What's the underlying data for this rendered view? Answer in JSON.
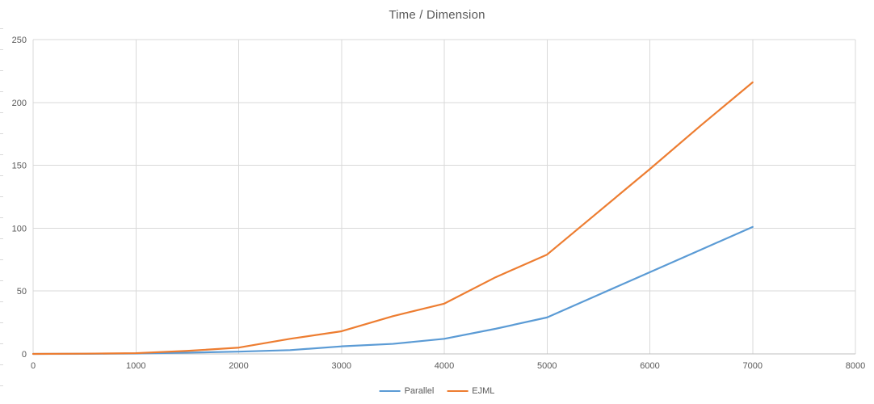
{
  "title": "Time / Dimension",
  "colors": {
    "series_parallel": "#5B9BD5",
    "series_ejml": "#ED7D31",
    "gridline": "#d9d9d9",
    "axis_line": "#bfbfbf",
    "text": "#595959",
    "background": "#ffffff"
  },
  "legend": {
    "items": [
      {
        "label": "Parallel",
        "color": "#5B9BD5"
      },
      {
        "label": "EJML",
        "color": "#ED7D31"
      }
    ]
  },
  "chart_data": {
    "type": "line",
    "title": "Time / Dimension",
    "xlabel": "",
    "ylabel": "",
    "xlim": [
      0,
      8000
    ],
    "ylim": [
      0,
      250
    ],
    "x_ticks": [
      0,
      1000,
      2000,
      3000,
      4000,
      5000,
      6000,
      7000,
      8000
    ],
    "y_ticks": [
      0,
      50,
      100,
      150,
      200,
      250
    ],
    "grid": true,
    "legend_position": "bottom-center",
    "x": [
      0,
      500,
      1000,
      1500,
      2000,
      2500,
      3000,
      3500,
      4000,
      4500,
      5000,
      5500,
      6000,
      6500,
      7000
    ],
    "series": [
      {
        "name": "Parallel",
        "color": "#5B9BD5",
        "values": [
          0,
          0.1,
          0.3,
          1,
          1.8,
          3,
          6,
          8,
          12,
          20,
          29,
          47,
          65,
          83,
          101
        ]
      },
      {
        "name": "EJML",
        "color": "#ED7D31",
        "values": [
          0,
          0.2,
          0.6,
          2.4,
          5,
          12,
          18,
          30,
          40,
          61,
          79,
          113,
          147,
          182,
          216
        ]
      }
    ]
  },
  "layout_note": ""
}
